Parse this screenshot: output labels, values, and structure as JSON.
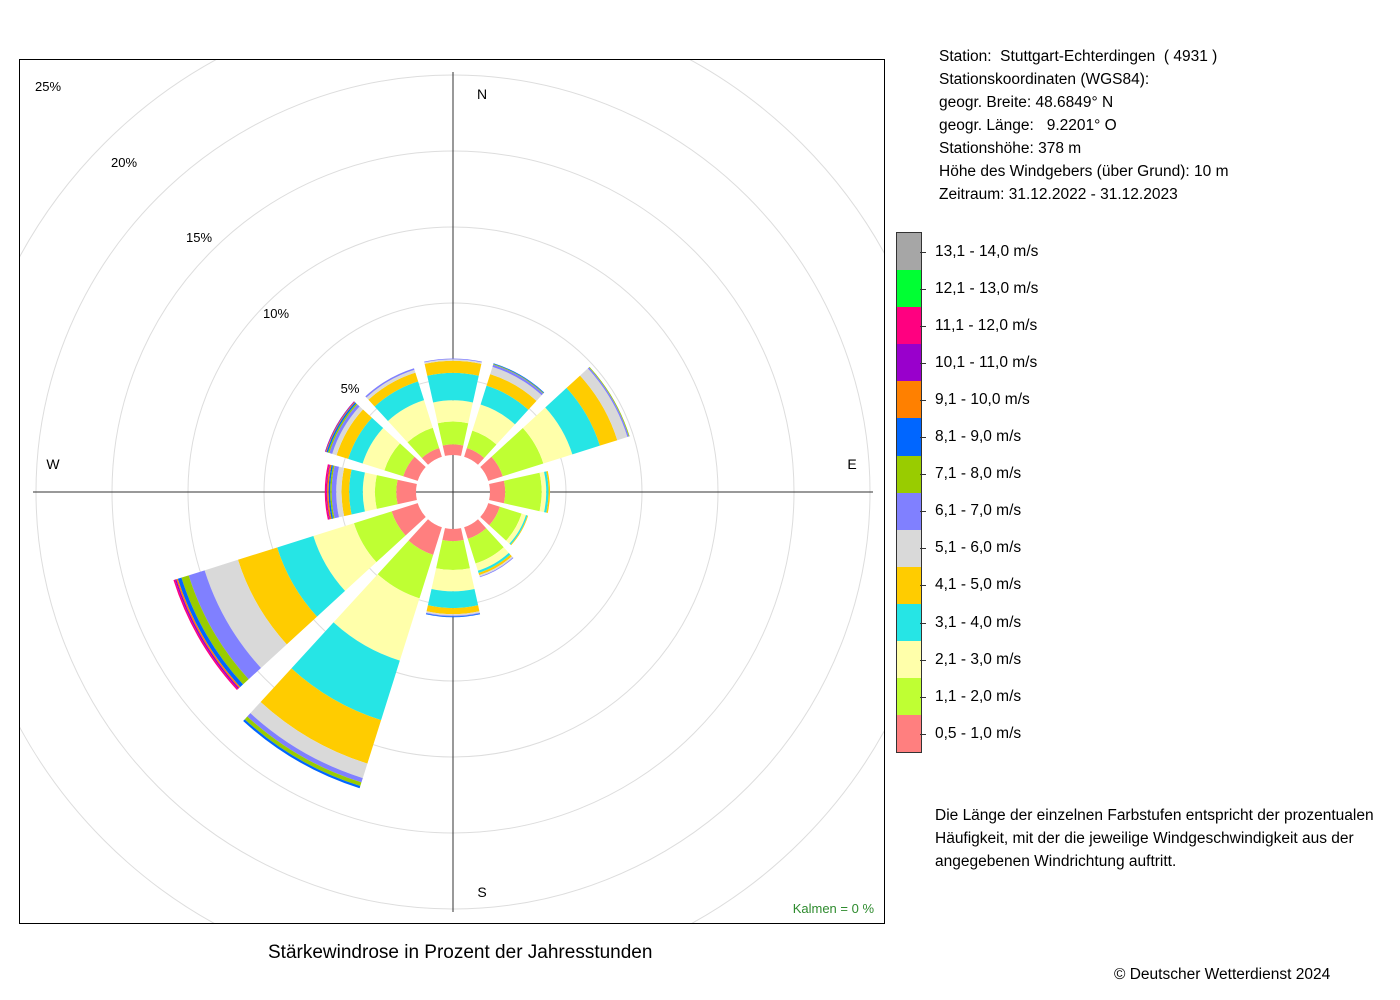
{
  "station": {
    "line1": "Station:  Stuttgart-Echterdingen  ( 4931 )",
    "line2": "Stationskoordinaten (WGS84):",
    "line3": "geogr. Breite: 48.6849° N",
    "line4": "geogr. Länge:   9.2201° O",
    "line5": "Stationshöhe: 378 m",
    "line6": "Höhe des Windgebers (über Grund): 10 m",
    "line7": "Zeitraum: 31.12.2022 - 31.12.2023"
  },
  "note": "Die Länge der einzelnen Farbstufen entspricht der prozentualen Häufigkeit, mit der die jeweilige Windgeschwindigkeit aus der angegebenen Windrichtung auftritt.",
  "caption": "Stärkewindrose in Prozent der Jahresstunden",
  "copyright": "© Deutscher Wetterdienst  2024",
  "chart_data": {
    "type": "wind-rose",
    "title": "Stärkewindrose in Prozent der Jahresstunden",
    "compass_labels": {
      "n": "N",
      "e": "E",
      "s": "S",
      "w": "W"
    },
    "ring_labels": [
      "5%",
      "10%",
      "15%",
      "20%",
      "25%"
    ],
    "ring_values": [
      5,
      10,
      15,
      20,
      25
    ],
    "calm_label": "Kalmen  =  0 %",
    "directions_deg": [
      0,
      30,
      60,
      90,
      120,
      150,
      180,
      210,
      240,
      270,
      300,
      330
    ],
    "speed_classes": [
      {
        "label": "0,5 - 1,0 m/s",
        "color": "#ff7f7f"
      },
      {
        "label": "1,1 - 2,0 m/s",
        "color": "#bfff33"
      },
      {
        "label": "2,1 - 3,0 m/s",
        "color": "#ffffaa"
      },
      {
        "label": "3,1 - 4,0 m/s",
        "color": "#26e5e5"
      },
      {
        "label": "4,1 - 5,0 m/s",
        "color": "#ffcc00"
      },
      {
        "label": "5,1 - 6,0 m/s",
        "color": "#d9d9d9"
      },
      {
        "label": "6,1 - 7,0 m/s",
        "color": "#8080ff"
      },
      {
        "label": "7,1 - 8,0 m/s",
        "color": "#99cc00"
      },
      {
        "label": "8,1 - 9,0 m/s",
        "color": "#0066ff"
      },
      {
        "label": "9,1 - 10,0 m/s",
        "color": "#ff8000"
      },
      {
        "label": "10,1 - 11,0 m/s",
        "color": "#9900cc"
      },
      {
        "label": "11,1 - 12,0 m/s",
        "color": "#ff0080"
      },
      {
        "label": "12,1 - 13,0 m/s",
        "color": "#00ff33"
      },
      {
        "label": "13,1 - 14,0 m/s",
        "color": "#a6a6a6"
      }
    ],
    "sectors": [
      {
        "dir": 0,
        "values": [
          0.7,
          1.5,
          1.4,
          1.8,
          0.8,
          0.1,
          0.05,
          0,
          0,
          0,
          0,
          0,
          0,
          0
        ]
      },
      {
        "dir": 30,
        "values": [
          0.6,
          1.2,
          1.8,
          1.3,
          0.8,
          0.5,
          0.15,
          0.05,
          0.05,
          0,
          0,
          0,
          0,
          0
        ]
      },
      {
        "dir": 60,
        "values": [
          1.0,
          2.8,
          2.0,
          1.9,
          1.2,
          0.7,
          0.1,
          0.05,
          0,
          0,
          0,
          0,
          0,
          0
        ]
      },
      {
        "dir": 90,
        "values": [
          1.0,
          2.4,
          0.3,
          0.15,
          0.1,
          0,
          0,
          0,
          0,
          0,
          0,
          0,
          0,
          0
        ]
      },
      {
        "dir": 120,
        "values": [
          0.8,
          1.5,
          0.3,
          0.1,
          0.05,
          0,
          0,
          0,
          0,
          0,
          0,
          0,
          0,
          0
        ]
      },
      {
        "dir": 150,
        "values": [
          0.8,
          1.7,
          0.5,
          0.15,
          0.15,
          0.1,
          0.05,
          0,
          0,
          0,
          0,
          0,
          0,
          0
        ]
      },
      {
        "dir": 180,
        "values": [
          0.8,
          1.9,
          1.4,
          1.1,
          0.4,
          0.1,
          0.05,
          0,
          0.05,
          0,
          0,
          0,
          0,
          0
        ]
      },
      {
        "dir": 210,
        "values": [
          1.9,
          3.0,
          4.3,
          4.1,
          3.0,
          1.0,
          0.3,
          0.25,
          0.15,
          0,
          0,
          0,
          0,
          0
        ]
      },
      {
        "dir": 240,
        "values": [
          1.8,
          2.6,
          2.8,
          2.5,
          2.7,
          2.3,
          1.1,
          0.5,
          0.25,
          0.1,
          0.1,
          0.1,
          0,
          0
        ]
      },
      {
        "dir": 270,
        "values": [
          1.3,
          1.4,
          0.8,
          0.9,
          0.5,
          0.35,
          0.3,
          0.1,
          0.1,
          0.1,
          0.05,
          0.1,
          0,
          0
        ]
      },
      {
        "dir": 300,
        "values": [
          1.0,
          1.3,
          1.5,
          1.0,
          0.8,
          0.3,
          0.2,
          0.1,
          0.1,
          0.05,
          0.05,
          0,
          0,
          0
        ]
      },
      {
        "dir": 330,
        "values": [
          0.6,
          1.4,
          1.9,
          1.3,
          0.6,
          0.2,
          0.1,
          0,
          0,
          0,
          0,
          0,
          0,
          0
        ]
      }
    ]
  }
}
